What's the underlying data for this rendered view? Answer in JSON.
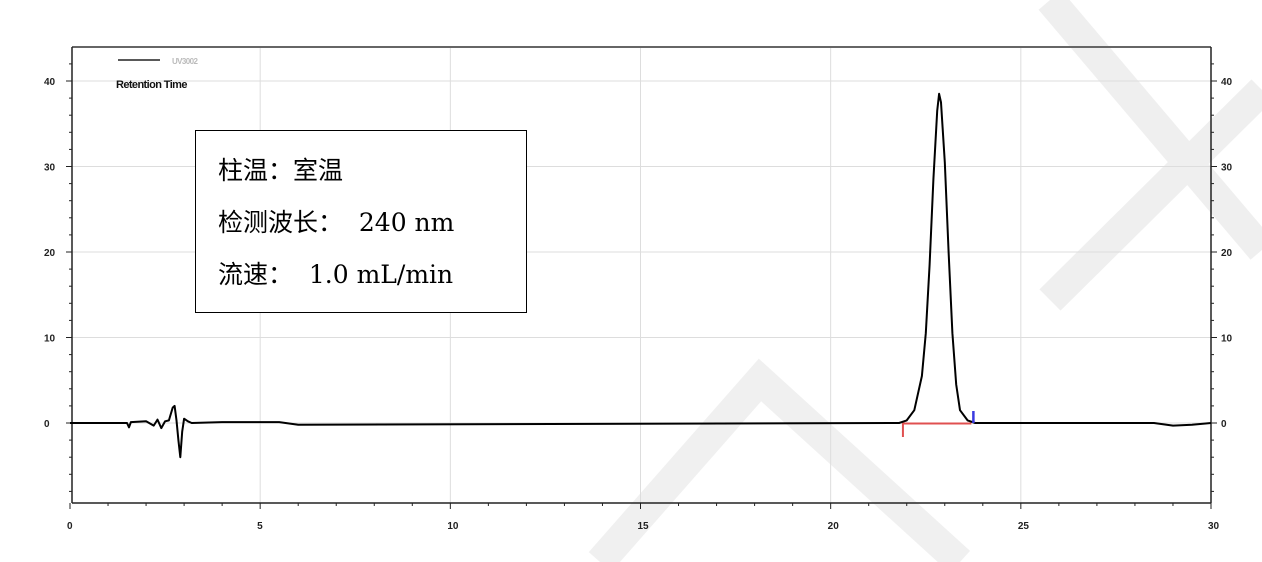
{
  "conditions": {
    "column_temp": "柱温：室温",
    "wavelength": "检测波长：  240 nm",
    "flow_rate": "流速：  1.0 mL/min"
  },
  "chart_data": {
    "type": "line",
    "title": "",
    "xlabel": "",
    "ylabel": "",
    "xlim": [
      0,
      30
    ],
    "ylim": [
      -9.5,
      44
    ],
    "xticks": [
      0,
      5,
      10,
      15,
      20,
      25,
      30
    ],
    "yticks": [
      0,
      10,
      20,
      30,
      40
    ],
    "grid": true,
    "legend": {
      "position": "top-left",
      "entry": "UV3002",
      "label": "Retention Time"
    },
    "series": [
      {
        "name": "UV3002",
        "color": "#000000",
        "x": [
          0,
          1.5,
          1.55,
          1.6,
          2.0,
          2.2,
          2.3,
          2.4,
          2.5,
          2.6,
          2.7,
          2.75,
          2.8,
          2.85,
          2.9,
          2.95,
          3.0,
          3.1,
          3.2,
          4.0,
          5.5,
          6.0,
          21.8,
          22.0,
          22.2,
          22.4,
          22.5,
          22.6,
          22.7,
          22.8,
          22.85,
          22.9,
          23.0,
          23.1,
          23.2,
          23.3,
          23.4,
          23.6,
          23.8,
          28.5,
          29,
          29.5,
          30
        ],
        "y": [
          0,
          0,
          -0.5,
          0.1,
          0.2,
          -0.3,
          0.4,
          -0.6,
          0.2,
          0.3,
          1.8,
          2.0,
          0.3,
          -2.0,
          -4.0,
          -1.0,
          0.5,
          0.2,
          0,
          0.1,
          0.1,
          -0.2,
          0,
          0.3,
          1.5,
          5.5,
          10.5,
          18.5,
          28.5,
          36.5,
          38.5,
          37.5,
          30.5,
          20,
          10.5,
          4.5,
          1.5,
          0.3,
          0,
          0,
          -0.3,
          -0.2,
          0
        ]
      }
    ],
    "integration": {
      "baseline_start": 21.9,
      "baseline_end": 23.7,
      "start_marker_color": "#e05050",
      "end_marker_color": "#3a3ae0"
    },
    "peak": {
      "retention_time": 22.85,
      "height": 38.5
    }
  }
}
